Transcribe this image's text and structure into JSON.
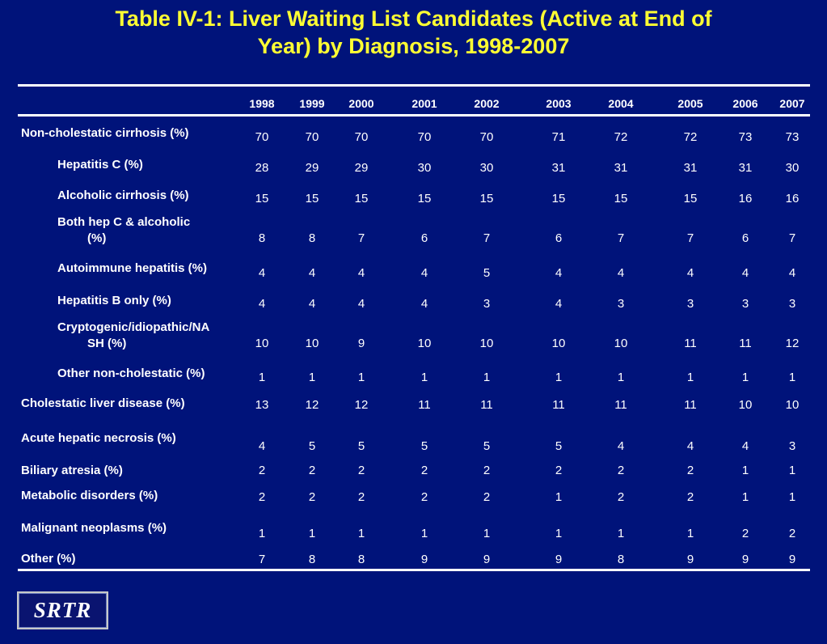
{
  "title": {
    "line1": "Table IV-1: Liver Waiting List Candidates (Active at End of",
    "line2": "Year) by Diagnosis, 1998-2007"
  },
  "years": [
    "1998",
    "1999",
    "2000",
    "2001",
    "2002",
    "2003",
    "2004",
    "2005",
    "2006",
    "2007"
  ],
  "rows": [
    {
      "label": "Non-cholestatic cirrhosis (%)",
      "values": [
        "70",
        "70",
        "70",
        "70",
        "70",
        "71",
        "72",
        "72",
        "73",
        "73"
      ]
    },
    {
      "label": "Hepatitis C (%)",
      "values": [
        "28",
        "29",
        "29",
        "30",
        "30",
        "31",
        "31",
        "31",
        "31",
        "30"
      ]
    },
    {
      "label": "Alcoholic cirrhosis (%)",
      "values": [
        "15",
        "15",
        "15",
        "15",
        "15",
        "15",
        "15",
        "15",
        "16",
        "16"
      ]
    },
    {
      "label_line1": "Both hep C & alcoholic",
      "label_line2": "(%)",
      "values": [
        "8",
        "8",
        "7",
        "6",
        "7",
        "6",
        "7",
        "7",
        "6",
        "7"
      ]
    },
    {
      "label": "Autoimmune hepatitis (%)",
      "values": [
        "4",
        "4",
        "4",
        "4",
        "5",
        "4",
        "4",
        "4",
        "4",
        "4"
      ]
    },
    {
      "label": "Hepatitis B only (%)",
      "values": [
        "4",
        "4",
        "4",
        "4",
        "3",
        "4",
        "3",
        "3",
        "3",
        "3"
      ]
    },
    {
      "label_line1": "Cryptogenic/idiopathic/NA",
      "label_line2": "SH (%)",
      "values": [
        "10",
        "10",
        "9",
        "10",
        "10",
        "10",
        "10",
        "11",
        "11",
        "12"
      ]
    },
    {
      "label": "Other non-cholestatic (%)",
      "values": [
        "1",
        "1",
        "1",
        "1",
        "1",
        "1",
        "1",
        "1",
        "1",
        "1"
      ]
    },
    {
      "label": "Cholestatic liver disease (%)",
      "values": [
        "13",
        "12",
        "12",
        "11",
        "11",
        "11",
        "11",
        "11",
        "10",
        "10"
      ]
    },
    {
      "label": "Acute hepatic necrosis (%)",
      "values": [
        "4",
        "5",
        "5",
        "5",
        "5",
        "5",
        "4",
        "4",
        "4",
        "3"
      ]
    },
    {
      "label": "Biliary atresia (%)",
      "values": [
        "2",
        "2",
        "2",
        "2",
        "2",
        "2",
        "2",
        "2",
        "1",
        "1"
      ]
    },
    {
      "label": "Metabolic disorders (%)",
      "values": [
        "2",
        "2",
        "2",
        "2",
        "2",
        "1",
        "2",
        "2",
        "1",
        "1"
      ]
    },
    {
      "label": "Malignant neoplasms (%)",
      "values": [
        "1",
        "1",
        "1",
        "1",
        "1",
        "1",
        "1",
        "1",
        "2",
        "2"
      ]
    },
    {
      "label": "Other (%)",
      "values": [
        "7",
        "8",
        "8",
        "9",
        "9",
        "9",
        "8",
        "9",
        "9",
        "9"
      ]
    }
  ],
  "logo": "SRTR",
  "colors": {
    "background": "#00137a",
    "title": "#ffff33",
    "text": "#ffffff"
  }
}
